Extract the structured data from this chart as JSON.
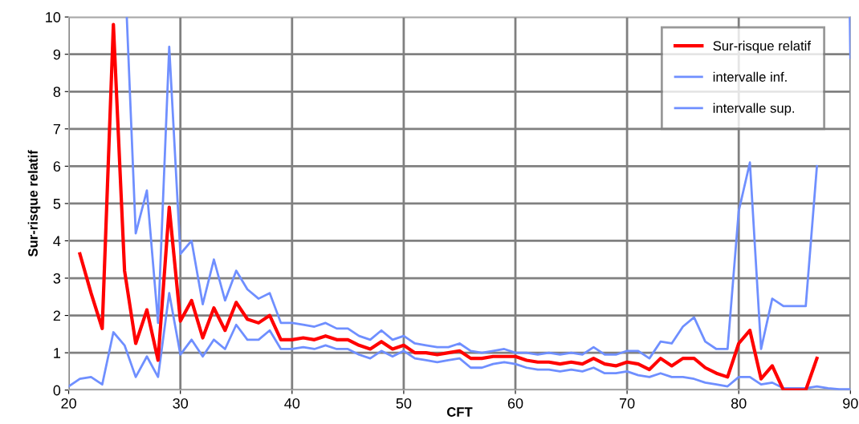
{
  "chart_data": {
    "type": "line",
    "xlabel": "CFT",
    "ylabel": "Sur-risque relatif",
    "xlim": [
      20,
      90
    ],
    "ylim": [
      0,
      10
    ],
    "xticks": [
      20,
      30,
      40,
      50,
      60,
      70,
      80,
      90
    ],
    "yticks": [
      0,
      1,
      2,
      3,
      4,
      5,
      6,
      7,
      8,
      9,
      10
    ],
    "grid": true,
    "legend": "top right",
    "marker": "none",
    "line_style": "solid",
    "series": [
      {
        "name": "Sur-risque relatif",
        "color": "#ff0000",
        "x": [
          21,
          22,
          23,
          24,
          25,
          26,
          27,
          28,
          29,
          30,
          31,
          32,
          33,
          34,
          35,
          36,
          37,
          38,
          39,
          40,
          41,
          42,
          43,
          44,
          45,
          46,
          47,
          48,
          49,
          50,
          51,
          52,
          53,
          54,
          55,
          56,
          57,
          58,
          59,
          60,
          61,
          62,
          63,
          64,
          65,
          66,
          67,
          68,
          69,
          70,
          71,
          72,
          73,
          74,
          75,
          76,
          77,
          78,
          79,
          80,
          81,
          82,
          83,
          84,
          85,
          86,
          87
        ],
        "values": [
          3.65,
          2.6,
          1.65,
          9.8,
          3.2,
          1.25,
          2.15,
          0.8,
          4.9,
          1.85,
          2.4,
          1.4,
          2.2,
          1.6,
          2.35,
          1.9,
          1.8,
          2.0,
          1.35,
          1.35,
          1.4,
          1.35,
          1.45,
          1.35,
          1.35,
          1.2,
          1.1,
          1.3,
          1.1,
          1.2,
          1.0,
          1.0,
          0.95,
          1.0,
          1.05,
          0.85,
          0.85,
          0.9,
          0.9,
          0.9,
          0.8,
          0.75,
          0.75,
          0.7,
          0.75,
          0.7,
          0.85,
          0.7,
          0.65,
          0.75,
          0.7,
          0.55,
          0.85,
          0.65,
          0.85,
          0.85,
          0.6,
          0.45,
          0.35,
          1.25,
          1.6,
          0.3,
          0.65,
          0,
          0,
          0,
          0.85
        ]
      },
      {
        "name": "intervalle inf.",
        "color": "#6f8fff",
        "x": [
          20,
          21,
          22,
          23,
          24,
          25,
          26,
          27,
          28,
          29,
          30,
          31,
          32,
          33,
          34,
          35,
          36,
          37,
          38,
          39,
          40,
          41,
          42,
          43,
          44,
          45,
          46,
          47,
          48,
          49,
          50,
          51,
          52,
          53,
          54,
          55,
          56,
          57,
          58,
          59,
          60,
          61,
          62,
          63,
          64,
          65,
          66,
          67,
          68,
          69,
          70,
          71,
          72,
          73,
          74,
          75,
          76,
          77,
          78,
          79,
          80,
          81,
          82,
          83,
          84,
          85,
          86,
          87,
          88,
          89,
          90
        ],
        "values": [
          0.1,
          0.3,
          0.35,
          0.15,
          1.55,
          1.2,
          0.35,
          0.9,
          0.35,
          2.6,
          0.95,
          1.35,
          0.9,
          1.35,
          1.1,
          1.75,
          1.35,
          1.35,
          1.6,
          1.1,
          1.1,
          1.15,
          1.1,
          1.2,
          1.1,
          1.1,
          0.95,
          0.85,
          1.05,
          0.9,
          1.05,
          0.85,
          0.8,
          0.75,
          0.8,
          0.85,
          0.6,
          0.6,
          0.7,
          0.75,
          0.7,
          0.6,
          0.55,
          0.55,
          0.5,
          0.55,
          0.5,
          0.6,
          0.45,
          0.45,
          0.5,
          0.4,
          0.35,
          0.45,
          0.35,
          0.35,
          0.3,
          0.2,
          0.15,
          0.1,
          0.35,
          0.35,
          0.15,
          0.2,
          0.05,
          0.05,
          0.05,
          0.1,
          0.05,
          0.02,
          0.02
        ]
      },
      {
        "name": "intervalle sup.",
        "color": "#6f8fff",
        "x": [
          25.2,
          26,
          27,
          28,
          29,
          30,
          31,
          32,
          33,
          34,
          35,
          36,
          37,
          38,
          39,
          40,
          41,
          42,
          43,
          44,
          45,
          46,
          47,
          48,
          49,
          50,
          51,
          52,
          53,
          54,
          55,
          56,
          57,
          58,
          59,
          60,
          61,
          62,
          63,
          64,
          65,
          66,
          67,
          68,
          69,
          70,
          71,
          72,
          73,
          74,
          75,
          76,
          77,
          78,
          79,
          80,
          81,
          82,
          83,
          84,
          85,
          86,
          87,
          87.15,
          89.95,
          90
        ],
        "values": [
          10,
          4.2,
          5.35,
          1.8,
          9.2,
          3.65,
          4.0,
          2.3,
          3.5,
          2.4,
          3.2,
          2.7,
          2.45,
          2.6,
          1.8,
          1.8,
          1.75,
          1.7,
          1.8,
          1.65,
          1.65,
          1.45,
          1.35,
          1.6,
          1.35,
          1.45,
          1.25,
          1.2,
          1.15,
          1.15,
          1.25,
          1.05,
          1.0,
          1.05,
          1.1,
          1.0,
          1.0,
          0.95,
          1.0,
          0.95,
          1.0,
          0.95,
          1.15,
          0.95,
          0.95,
          1.05,
          1.05,
          0.85,
          1.3,
          1.25,
          1.7,
          1.95,
          1.3,
          1.1,
          1.1,
          4.8,
          6.1,
          1.1,
          2.45,
          2.25,
          2.25,
          2.25,
          6.0,
          null,
          10,
          8.9
        ]
      }
    ]
  }
}
